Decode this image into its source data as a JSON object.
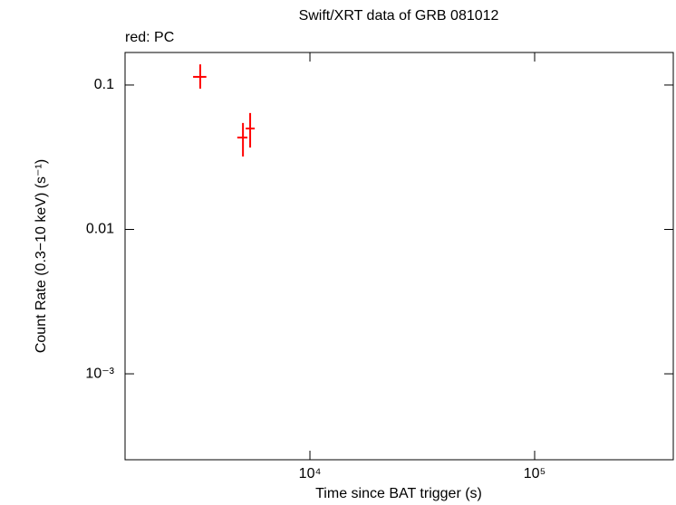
{
  "chart_data": {
    "type": "scatter",
    "title": "Swift/XRT data of GRB 081012",
    "subtitle": "red: PC",
    "x_label": "Time since BAT trigger (s)",
    "y_label": "Count Rate (0.3−10 keV) (s⁻¹)",
    "x_scale": "log",
    "y_scale": "log",
    "xlim": [
      1504,
      414000
    ],
    "ylim": [
      0.000254,
      0.168
    ],
    "xticks": [
      {
        "value": 10000,
        "label": "10⁴"
      },
      {
        "value": 100000,
        "label": "10⁵"
      }
    ],
    "yticks": [
      {
        "value": 0.001,
        "label": "10⁻³"
      },
      0.01,
      0.1
    ],
    "series": [
      {
        "name": "PC",
        "color": "#ff0000",
        "x": [
          3250,
          5035,
          5420
        ],
        "values": [
          0.1139,
          0.0433,
          0.05
        ],
        "x_low": [
          3020,
          4750,
          5180
        ],
        "x_high": [
          3460,
          5270,
          5680
        ],
        "y_low": [
          0.0944,
          0.032,
          0.0369
        ],
        "y_high": [
          0.139,
          0.0546,
          0.064
        ]
      }
    ]
  }
}
